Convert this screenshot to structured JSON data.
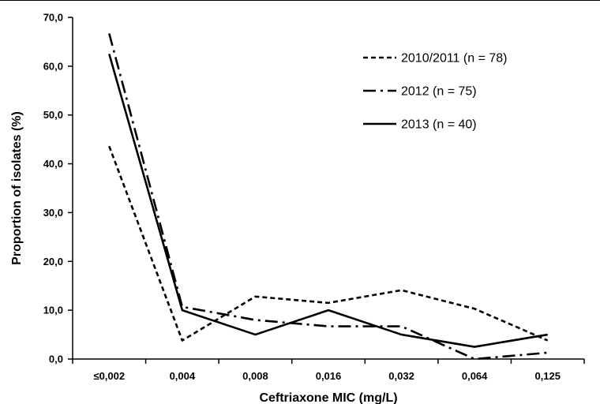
{
  "chart_data": {
    "type": "line",
    "xlabel": "Ceftriaxone MIC (mg/L)",
    "ylabel": "Proportion of isolates (%)",
    "categories": [
      "≤0,002",
      "0,004",
      "0,008",
      "0,016",
      "0,032",
      "0,064",
      "0,125"
    ],
    "ylim": [
      0,
      70
    ],
    "yticks": [
      "0,0",
      "10,0",
      "20,0",
      "30,0",
      "40,0",
      "50,0",
      "60,0",
      "70,0"
    ],
    "grid": false,
    "legend_position": "top-right",
    "series": [
      {
        "name": "2010/2011 (n = 78)",
        "dash": "short-dash",
        "values": [
          43.6,
          3.8,
          12.8,
          11.5,
          14.1,
          10.3,
          3.8
        ]
      },
      {
        "name": "2012 (n = 75)",
        "dash": "dash-dot",
        "values": [
          66.7,
          10.7,
          8.0,
          6.7,
          6.7,
          0.0,
          1.3
        ]
      },
      {
        "name": "2013 (n = 40)",
        "dash": "solid",
        "values": [
          62.5,
          10.0,
          5.0,
          10.0,
          5.0,
          2.5,
          5.0
        ]
      }
    ]
  }
}
